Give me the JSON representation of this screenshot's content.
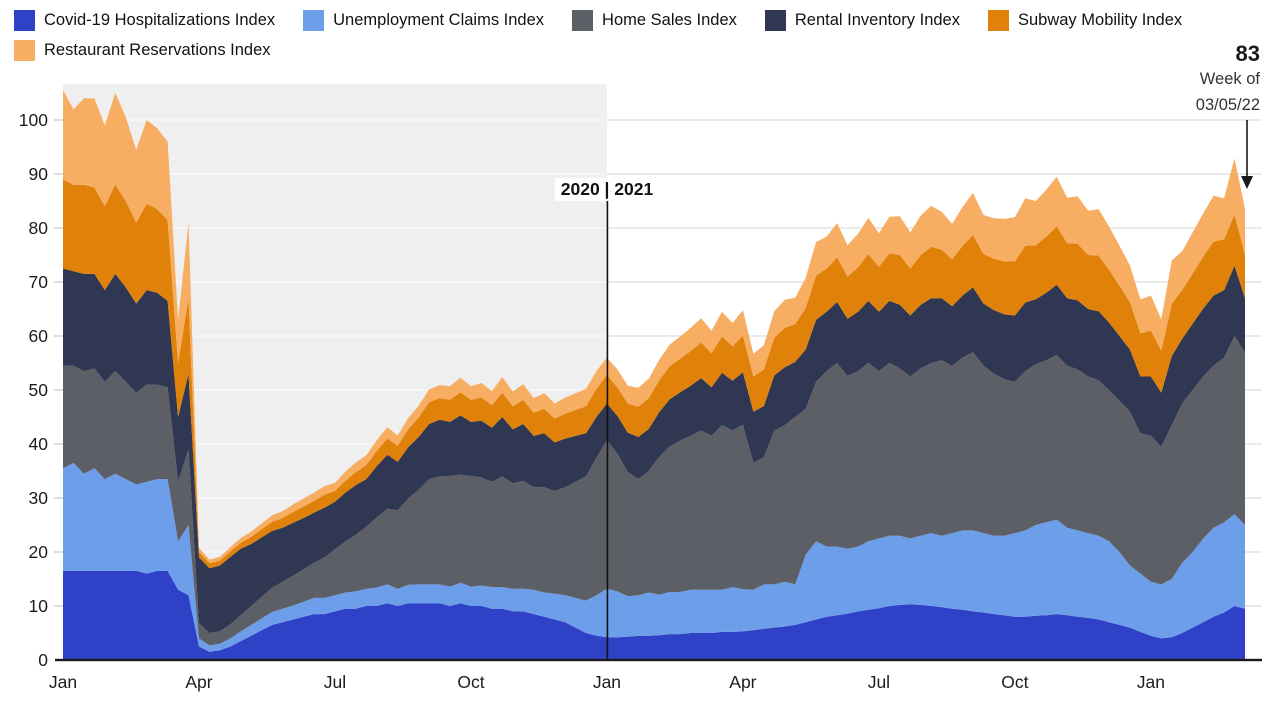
{
  "legend": {
    "items": [
      {
        "id": "covid",
        "label": "Covid-19 Hospitalizations Index",
        "color": "#2f41c7"
      },
      {
        "id": "unemployment",
        "label": "Unemployment Claims Index",
        "color": "#6d9eea"
      },
      {
        "id": "home_sales",
        "label": "Home Sales Index",
        "color": "#5d5f66"
      },
      {
        "id": "rental",
        "label": "Rental Inventory Index",
        "color": "#2f3753"
      },
      {
        "id": "subway",
        "label": "Subway Mobility Index",
        "color": "#e0820a"
      },
      {
        "id": "restaurant",
        "label": "Restaurant Reservations Index",
        "color": "#f7ad62"
      }
    ]
  },
  "chart_data": {
    "type": "area",
    "stacked": true,
    "x_unit": "weeks",
    "n_points": 114,
    "y_axis": {
      "ticks": [
        0,
        10,
        20,
        30,
        40,
        50,
        60,
        70,
        80,
        90,
        100
      ],
      "max_value": 106.5,
      "grid": true
    },
    "x_axis": {
      "ticks": [
        {
          "label": "Jan",
          "week": 0
        },
        {
          "label": "Apr",
          "week": 13
        },
        {
          "label": "Jul",
          "week": 26
        },
        {
          "label": "Oct",
          "week": 39
        },
        {
          "label": "Jan",
          "week": 52
        },
        {
          "label": "Apr",
          "week": 65
        },
        {
          "label": "Jul",
          "week": 78
        },
        {
          "label": "Oct",
          "week": 91
        },
        {
          "label": "Jan",
          "week": 104
        }
      ]
    },
    "divider": {
      "week": 52,
      "label": "2020 | 2021"
    },
    "shaded_region": {
      "start_week": 0,
      "end_week": 52,
      "color": "#efefef"
    },
    "annotation": {
      "value": "83",
      "line1": "Week of",
      "line2": "03/05/22",
      "points_to_week": 113
    },
    "series": [
      {
        "name": "Covid-19 Hospitalizations Index",
        "color": "#2f41c7",
        "values": [
          16.5,
          16.5,
          16.5,
          16.5,
          16.5,
          16.5,
          16.5,
          16.5,
          16,
          16.5,
          16.5,
          13,
          12,
          2.5,
          1.5,
          1.8,
          2.5,
          3.5,
          4.5,
          5.5,
          6.5,
          7,
          7.5,
          8,
          8.5,
          8.5,
          9,
          9.5,
          9.5,
          10,
          10,
          10.5,
          10,
          10.5,
          10.5,
          10.5,
          10.5,
          10,
          10.5,
          10,
          10,
          9.5,
          9.5,
          9,
          9,
          8.5,
          8,
          7.5,
          7,
          6,
          5,
          4.5,
          4.2,
          4.2,
          4.3,
          4.5,
          4.5,
          4.6,
          4.8,
          4.8,
          5,
          5,
          5,
          5.2,
          5.2,
          5.3,
          5.5,
          5.8,
          6,
          6.2,
          6.5,
          7,
          7.5,
          8,
          8.3,
          8.6,
          9,
          9.3,
          9.6,
          10,
          10.2,
          10.3,
          10.2,
          10,
          9.8,
          9.5,
          9.3,
          9,
          8.8,
          8.5,
          8.3,
          8,
          8,
          8.2,
          8.3,
          8.5,
          8.3,
          8,
          7.8,
          7.5,
          7,
          6.5,
          6,
          5.2,
          4.5,
          4,
          4.2,
          5,
          6,
          7,
          8,
          8.8,
          10,
          9.5
        ]
      },
      {
        "name": "Unemployment Claims Index",
        "color": "#6d9eea",
        "values": [
          19,
          20,
          18,
          19,
          17,
          18,
          17,
          16,
          17,
          17,
          17,
          9,
          13,
          1.5,
          1.2,
          1.2,
          1.5,
          1.8,
          2,
          2.2,
          2.4,
          2.5,
          2.6,
          2.8,
          3,
          3,
          3,
          3,
          3.2,
          3.2,
          3.4,
          3.5,
          3.2,
          3.4,
          3.5,
          3.5,
          3.5,
          3.6,
          3.8,
          3.6,
          3.8,
          4,
          4,
          4.2,
          4.2,
          4.5,
          4.5,
          4.8,
          5,
          5.5,
          6,
          7.5,
          9,
          8.5,
          7.5,
          7.5,
          8,
          7.5,
          7.8,
          7.8,
          8,
          8,
          8,
          7.8,
          8.3,
          7.8,
          7.5,
          8.2,
          8,
          8.3,
          7.5,
          12.5,
          14.5,
          13,
          12.7,
          12,
          12,
          12.7,
          12.9,
          13,
          12.8,
          12.2,
          12.8,
          13.5,
          13.2,
          14,
          14.7,
          15,
          14.7,
          14.5,
          14.7,
          15.5,
          16,
          16.8,
          17.2,
          17.5,
          16.2,
          16,
          15.7,
          15.5,
          15,
          13.5,
          11.5,
          10.8,
          10,
          10,
          10.8,
          13,
          14,
          15.5,
          16.5,
          16.7,
          17,
          15.5
        ]
      },
      {
        "name": "Home Sales Index",
        "color": "#5d5f66",
        "values": [
          19,
          18,
          19,
          18.5,
          18,
          19,
          18,
          17,
          18,
          17.5,
          17,
          11,
          14,
          2.8,
          2.3,
          2.3,
          2.6,
          3,
          3.5,
          4,
          4.5,
          5,
          5.5,
          6,
          6.5,
          7.5,
          8.5,
          9.5,
          10.5,
          11.5,
          13,
          14,
          14.5,
          16,
          17.5,
          19.5,
          20,
          20.5,
          20,
          20.5,
          20,
          19.5,
          20.5,
          19.5,
          20,
          19,
          19.5,
          19,
          20,
          21.5,
          23,
          25.5,
          27.5,
          25.5,
          23,
          21.5,
          22.5,
          25.5,
          27,
          28,
          28.5,
          29.5,
          28.5,
          30.5,
          29,
          30.5,
          23.5,
          23.5,
          28.5,
          29,
          31,
          27,
          29.5,
          32.5,
          34,
          32,
          32.5,
          33,
          31,
          32,
          31,
          30,
          31,
          31.5,
          32.5,
          31,
          32,
          33,
          31,
          30,
          29,
          28,
          29.5,
          29.8,
          30,
          30.5,
          30,
          29.8,
          29,
          28.8,
          28,
          28,
          28.5,
          26,
          27,
          25.5,
          28.5,
          29.5,
          30,
          30,
          30,
          30.5,
          33,
          32
        ]
      },
      {
        "name": "Rental Inventory Index",
        "color": "#2f3753",
        "values": [
          18,
          17.5,
          18,
          17.5,
          17,
          18,
          17.5,
          16.5,
          17.5,
          17,
          16,
          12,
          14,
          12.2,
          12,
          12.2,
          12.5,
          12.3,
          11.5,
          11,
          10.5,
          10,
          9.8,
          9.5,
          9.3,
          9.2,
          8.8,
          9,
          9.2,
          8.8,
          9.5,
          10,
          9,
          9.5,
          9.8,
          10.2,
          10.5,
          10,
          11,
          10,
          10.5,
          10,
          11,
          10,
          10.5,
          9.5,
          10,
          9,
          9,
          8.5,
          8,
          7.5,
          6.8,
          7,
          7.3,
          7.8,
          7.8,
          8.3,
          8.7,
          9,
          9.3,
          9.7,
          9,
          9.7,
          9.2,
          9.7,
          9.5,
          9.5,
          10.2,
          10.7,
          10.2,
          11,
          11.5,
          11,
          11.3,
          10.6,
          11,
          11.5,
          11,
          11.5,
          11.8,
          11.3,
          11.8,
          12,
          11.5,
          11,
          11.5,
          12,
          11.5,
          11.8,
          12,
          12.3,
          12.7,
          12,
          12.5,
          13,
          12.5,
          12.8,
          12.5,
          12.8,
          12.5,
          12,
          11.5,
          10.5,
          11,
          10,
          12.8,
          12,
          12.3,
          12.6,
          13,
          12.5,
          13,
          10
        ]
      },
      {
        "name": "Subway Mobility Index",
        "color": "#e0820a",
        "values": [
          16.5,
          16,
          16.5,
          16,
          15.5,
          16.5,
          16,
          15,
          16,
          15.5,
          15,
          10,
          14,
          1,
          0.9,
          0.9,
          1,
          1.1,
          1.3,
          1.5,
          1.7,
          1.8,
          2,
          2.1,
          2.2,
          2.4,
          2,
          2.2,
          2.4,
          2.6,
          2.8,
          3,
          3,
          3.3,
          3.6,
          4,
          4,
          4.1,
          4.3,
          4.1,
          4.3,
          4.2,
          4.5,
          4.3,
          4.5,
          4.3,
          4.5,
          4.4,
          4.6,
          4.8,
          5,
          5.2,
          5.3,
          5.3,
          5.4,
          5.6,
          5.7,
          5.9,
          6.1,
          6.2,
          6.4,
          6.6,
          6.3,
          6.7,
          6.4,
          6.8,
          6.5,
          6.8,
          7,
          7.3,
          7,
          7.7,
          8.2,
          8,
          8.3,
          7.8,
          8.2,
          8.7,
          8.3,
          8.8,
          9.2,
          8.7,
          9.2,
          9.5,
          9,
          8.7,
          9.2,
          9.7,
          9.2,
          9.5,
          9.8,
          10,
          10.5,
          10,
          10.4,
          10.8,
          10.2,
          10.5,
          10,
          10.3,
          9.8,
          9.3,
          8.8,
          8,
          8.5,
          7.8,
          9.7,
          9,
          9.3,
          9.6,
          10,
          9.4,
          9.5,
          8
        ]
      },
      {
        "name": "Restaurant Reservations Index",
        "color": "#f7ad62",
        "values": [
          16.5,
          14,
          16,
          16.5,
          15,
          17,
          15.5,
          13.5,
          15.5,
          15,
          14.5,
          8,
          14,
          0.8,
          0.7,
          0.7,
          0.8,
          0.9,
          1,
          1.1,
          1.2,
          1.3,
          1.4,
          1.5,
          1.5,
          1.6,
          1.5,
          1.7,
          1.8,
          1.8,
          2,
          2.1,
          1.9,
          2.1,
          2.2,
          2.4,
          2.4,
          2.5,
          2.7,
          2.5,
          2.7,
          2.6,
          2.9,
          2.7,
          2.9,
          2.7,
          2.9,
          2.8,
          3,
          3.1,
          3.2,
          3.3,
          3.2,
          3.3,
          3.3,
          3.5,
          3.6,
          3.8,
          4,
          4.1,
          4.3,
          4.5,
          4.2,
          4.6,
          4.3,
          4.7,
          4.2,
          4.5,
          4.9,
          5.2,
          4.9,
          5.6,
          6.2,
          5.9,
          6.3,
          5.8,
          6.2,
          6.7,
          6.2,
          6.8,
          7.2,
          6.7,
          7.3,
          7.6,
          7,
          6.6,
          7.2,
          7.8,
          7.2,
          7.5,
          7.9,
          8.2,
          8.8,
          8.2,
          8.7,
          9.2,
          8.4,
          8.8,
          8.2,
          8.6,
          8,
          7.4,
          6.8,
          6.3,
          6.5,
          5.8,
          8,
          7.2,
          7.6,
          8,
          8.5,
          7.6,
          10.4,
          8.5
        ]
      }
    ]
  }
}
